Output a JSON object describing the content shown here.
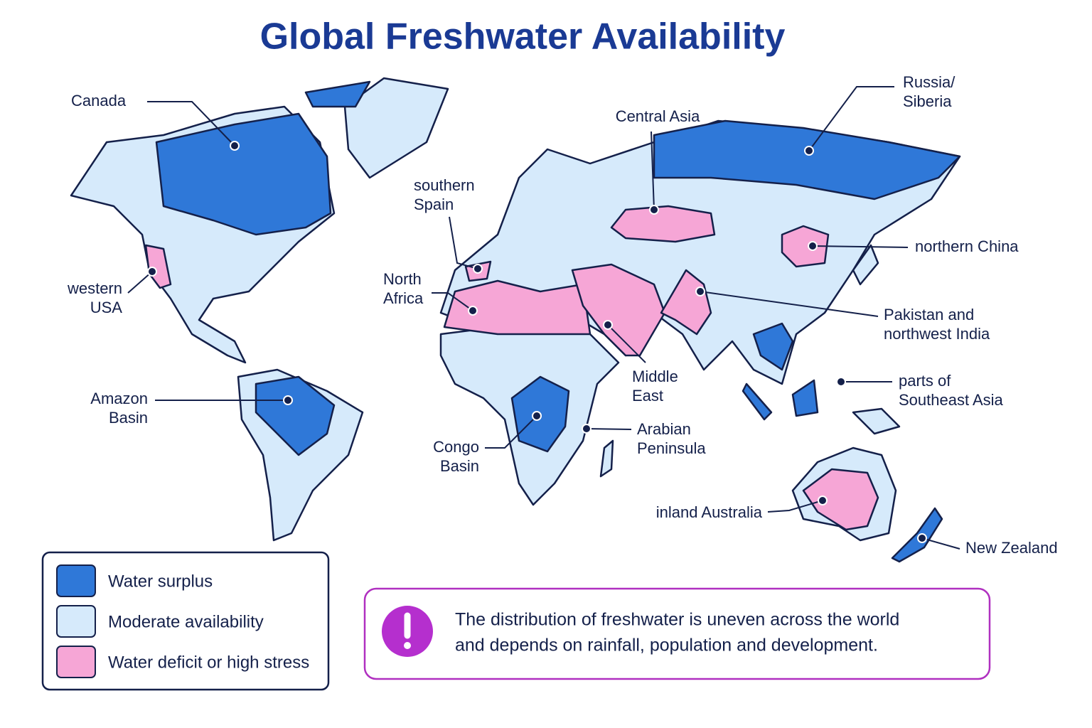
{
  "title": "Global Freshwater Availability",
  "labels": [
    {
      "lines": [
        "Canada"
      ]
    },
    {
      "lines": [
        "Russia/",
        "Siberia"
      ]
    },
    {
      "lines": [
        "Central Asia"
      ]
    },
    {
      "lines": [
        "southern",
        "Spain"
      ]
    },
    {
      "lines": [
        "northern China"
      ]
    },
    {
      "lines": [
        "western",
        "USA"
      ]
    },
    {
      "lines": [
        "North",
        "Africa"
      ]
    },
    {
      "lines": [
        "Pakistan and",
        "northwest India"
      ]
    },
    {
      "lines": [
        "Middle",
        "East"
      ]
    },
    {
      "lines": [
        "parts of",
        "Southeast Asia"
      ]
    },
    {
      "lines": [
        "Amazon",
        "Basin"
      ]
    },
    {
      "lines": [
        "Arabian",
        "Peninsula"
      ]
    },
    {
      "lines": [
        "Congo",
        "Basin"
      ]
    },
    {
      "lines": [
        "inland Australia"
      ]
    },
    {
      "lines": [
        "New Zealand"
      ]
    }
  ],
  "legend": {
    "items": [
      {
        "label": "Water surplus",
        "color": "#2f78d8"
      },
      {
        "label": "Moderate availability",
        "color": "#d6eafb"
      },
      {
        "label": "Water deficit or high stress",
        "color": "#f6a6d6"
      }
    ]
  },
  "note": {
    "lines": [
      "The distribution of freshwater is uneven across the world",
      "and depends on rainfall, population and development."
    ]
  }
}
